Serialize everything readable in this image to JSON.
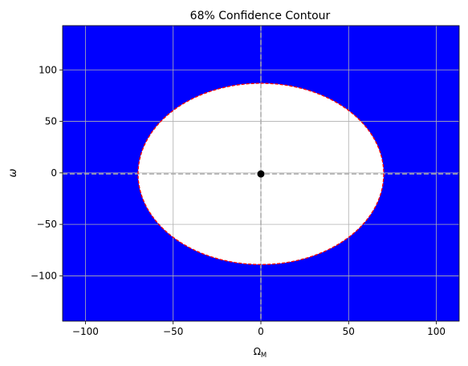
{
  "chart_data": {
    "type": "contour",
    "title": "68% Confidence Contour",
    "xlabel_main": "Ω",
    "xlabel_sub": "M",
    "ylabel": "ω",
    "xlim": [
      -113,
      113
    ],
    "ylim": [
      -144,
      143
    ],
    "xticks": [
      -100,
      -50,
      0,
      50,
      100
    ],
    "xtick_labels": [
      "−100",
      "−50",
      "0",
      "50",
      "100"
    ],
    "yticks": [
      -100,
      -50,
      0,
      50,
      100
    ],
    "ytick_labels": [
      "−100",
      "−50",
      "0",
      "50",
      "100"
    ],
    "grid": true,
    "region": {
      "fill_color": "#0000ff",
      "interior_color": "#ffffff",
      "boundary_color": "#ff0000",
      "boundary_style": "dashed"
    },
    "ellipse": {
      "center": [
        0,
        -1
      ],
      "semi_axis_x": 70,
      "semi_axis_y": 88
    },
    "crosshair": {
      "x": 0,
      "y": -1,
      "color": "#aaaaaa",
      "style": "dashed"
    },
    "best_fit_point": {
      "x": 0,
      "y": -1,
      "color": "#000000"
    }
  }
}
